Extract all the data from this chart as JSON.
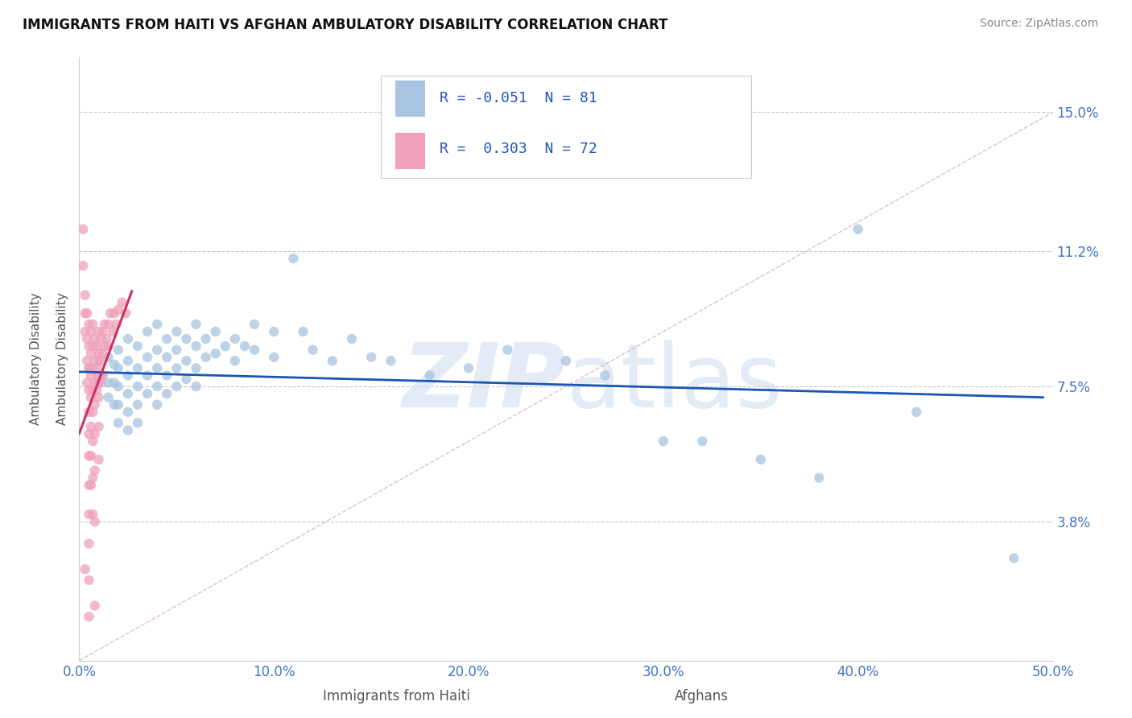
{
  "title": "IMMIGRANTS FROM HAITI VS AFGHAN AMBULATORY DISABILITY CORRELATION CHART",
  "source": "Source: ZipAtlas.com",
  "xlabel_haiti": "Immigrants from Haiti",
  "xlabel_afghan": "Afghans",
  "ylabel": "Ambulatory Disability",
  "xlim": [
    0.0,
    0.5
  ],
  "ylim": [
    0.0,
    0.165
  ],
  "xticks": [
    0.0,
    0.1,
    0.2,
    0.3,
    0.4,
    0.5
  ],
  "xticklabels": [
    "0.0%",
    "10.0%",
    "20.0%",
    "30.0%",
    "40.0%",
    "50.0%"
  ],
  "yticks": [
    0.038,
    0.075,
    0.112,
    0.15
  ],
  "yticklabels": [
    "3.8%",
    "7.5%",
    "11.2%",
    "15.0%"
  ],
  "haiti_color": "#a8c4e0",
  "afghan_color": "#f0a0b8",
  "haiti_line_color": "#1a56b0",
  "afghan_line_color": "#d03060",
  "diag_line_color": "#d8a0b0",
  "haiti_R": -0.051,
  "haiti_N": 81,
  "afghan_R": 0.303,
  "afghan_N": 72,
  "watermark": "ZIPatlas",
  "background_color": "#ffffff",
  "grid_color": "#c8c8c8",
  "haiti_scatter": [
    [
      0.005,
      0.08
    ],
    [
      0.01,
      0.082
    ],
    [
      0.01,
      0.076
    ],
    [
      0.012,
      0.078
    ],
    [
      0.015,
      0.083
    ],
    [
      0.015,
      0.076
    ],
    [
      0.015,
      0.072
    ],
    [
      0.018,
      0.081
    ],
    [
      0.018,
      0.076
    ],
    [
      0.018,
      0.07
    ],
    [
      0.02,
      0.085
    ],
    [
      0.02,
      0.08
    ],
    [
      0.02,
      0.075
    ],
    [
      0.02,
      0.07
    ],
    [
      0.02,
      0.065
    ],
    [
      0.025,
      0.088
    ],
    [
      0.025,
      0.082
    ],
    [
      0.025,
      0.078
    ],
    [
      0.025,
      0.073
    ],
    [
      0.025,
      0.068
    ],
    [
      0.025,
      0.063
    ],
    [
      0.03,
      0.086
    ],
    [
      0.03,
      0.08
    ],
    [
      0.03,
      0.075
    ],
    [
      0.03,
      0.07
    ],
    [
      0.03,
      0.065
    ],
    [
      0.035,
      0.09
    ],
    [
      0.035,
      0.083
    ],
    [
      0.035,
      0.078
    ],
    [
      0.035,
      0.073
    ],
    [
      0.04,
      0.092
    ],
    [
      0.04,
      0.085
    ],
    [
      0.04,
      0.08
    ],
    [
      0.04,
      0.075
    ],
    [
      0.04,
      0.07
    ],
    [
      0.045,
      0.088
    ],
    [
      0.045,
      0.083
    ],
    [
      0.045,
      0.078
    ],
    [
      0.045,
      0.073
    ],
    [
      0.05,
      0.09
    ],
    [
      0.05,
      0.085
    ],
    [
      0.05,
      0.08
    ],
    [
      0.05,
      0.075
    ],
    [
      0.055,
      0.088
    ],
    [
      0.055,
      0.082
    ],
    [
      0.055,
      0.077
    ],
    [
      0.06,
      0.092
    ],
    [
      0.06,
      0.086
    ],
    [
      0.06,
      0.08
    ],
    [
      0.06,
      0.075
    ],
    [
      0.065,
      0.088
    ],
    [
      0.065,
      0.083
    ],
    [
      0.07,
      0.09
    ],
    [
      0.07,
      0.084
    ],
    [
      0.075,
      0.086
    ],
    [
      0.08,
      0.088
    ],
    [
      0.08,
      0.082
    ],
    [
      0.085,
      0.086
    ],
    [
      0.09,
      0.092
    ],
    [
      0.09,
      0.085
    ],
    [
      0.1,
      0.09
    ],
    [
      0.1,
      0.083
    ],
    [
      0.11,
      0.11
    ],
    [
      0.115,
      0.09
    ],
    [
      0.12,
      0.085
    ],
    [
      0.13,
      0.082
    ],
    [
      0.14,
      0.088
    ],
    [
      0.15,
      0.083
    ],
    [
      0.16,
      0.082
    ],
    [
      0.18,
      0.078
    ],
    [
      0.2,
      0.08
    ],
    [
      0.22,
      0.085
    ],
    [
      0.25,
      0.082
    ],
    [
      0.27,
      0.078
    ],
    [
      0.3,
      0.06
    ],
    [
      0.32,
      0.06
    ],
    [
      0.35,
      0.055
    ],
    [
      0.38,
      0.05
    ],
    [
      0.4,
      0.118
    ],
    [
      0.43,
      0.068
    ],
    [
      0.48,
      0.028
    ]
  ],
  "afghan_scatter": [
    [
      0.002,
      0.118
    ],
    [
      0.002,
      0.108
    ],
    [
      0.003,
      0.1
    ],
    [
      0.003,
      0.095
    ],
    [
      0.003,
      0.09
    ],
    [
      0.004,
      0.095
    ],
    [
      0.004,
      0.088
    ],
    [
      0.004,
      0.082
    ],
    [
      0.004,
      0.076
    ],
    [
      0.005,
      0.092
    ],
    [
      0.005,
      0.086
    ],
    [
      0.005,
      0.08
    ],
    [
      0.005,
      0.074
    ],
    [
      0.005,
      0.068
    ],
    [
      0.005,
      0.062
    ],
    [
      0.005,
      0.056
    ],
    [
      0.005,
      0.048
    ],
    [
      0.005,
      0.04
    ],
    [
      0.005,
      0.032
    ],
    [
      0.005,
      0.022
    ],
    [
      0.006,
      0.09
    ],
    [
      0.006,
      0.084
    ],
    [
      0.006,
      0.078
    ],
    [
      0.006,
      0.072
    ],
    [
      0.006,
      0.064
    ],
    [
      0.006,
      0.056
    ],
    [
      0.006,
      0.048
    ],
    [
      0.007,
      0.092
    ],
    [
      0.007,
      0.086
    ],
    [
      0.007,
      0.08
    ],
    [
      0.007,
      0.074
    ],
    [
      0.007,
      0.068
    ],
    [
      0.007,
      0.06
    ],
    [
      0.007,
      0.05
    ],
    [
      0.007,
      0.04
    ],
    [
      0.008,
      0.088
    ],
    [
      0.008,
      0.082
    ],
    [
      0.008,
      0.076
    ],
    [
      0.008,
      0.07
    ],
    [
      0.008,
      0.062
    ],
    [
      0.008,
      0.052
    ],
    [
      0.008,
      0.038
    ],
    [
      0.009,
      0.086
    ],
    [
      0.009,
      0.08
    ],
    [
      0.009,
      0.074
    ],
    [
      0.01,
      0.09
    ],
    [
      0.01,
      0.084
    ],
    [
      0.01,
      0.078
    ],
    [
      0.01,
      0.072
    ],
    [
      0.01,
      0.064
    ],
    [
      0.01,
      0.055
    ],
    [
      0.011,
      0.088
    ],
    [
      0.011,
      0.082
    ],
    [
      0.011,
      0.076
    ],
    [
      0.012,
      0.09
    ],
    [
      0.012,
      0.084
    ],
    [
      0.012,
      0.078
    ],
    [
      0.013,
      0.092
    ],
    [
      0.013,
      0.086
    ],
    [
      0.014,
      0.088
    ],
    [
      0.015,
      0.092
    ],
    [
      0.015,
      0.086
    ],
    [
      0.016,
      0.095
    ],
    [
      0.017,
      0.09
    ],
    [
      0.018,
      0.095
    ],
    [
      0.019,
      0.092
    ],
    [
      0.02,
      0.096
    ],
    [
      0.022,
      0.098
    ],
    [
      0.024,
      0.095
    ],
    [
      0.003,
      0.025
    ],
    [
      0.005,
      0.012
    ],
    [
      0.008,
      0.015
    ]
  ]
}
